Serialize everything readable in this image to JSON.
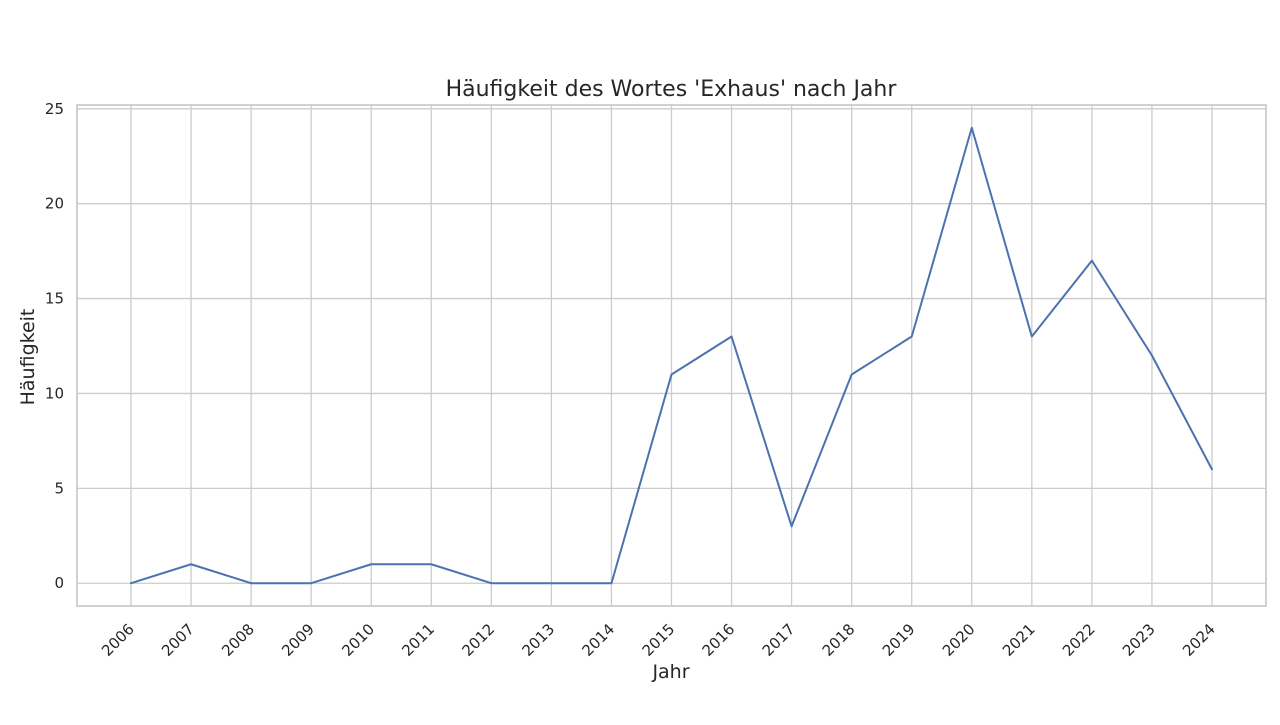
{
  "chart_data": {
    "type": "line",
    "title": "Häufigkeit des Wortes 'Exhaus' nach Jahr",
    "xlabel": "Jahr",
    "ylabel": "Häufigkeit",
    "x": [
      "2006",
      "2007",
      "2008",
      "2009",
      "2010",
      "2011",
      "2012",
      "2013",
      "2014",
      "2015",
      "2016",
      "2017",
      "2018",
      "2019",
      "2020",
      "2021",
      "2022",
      "2023",
      "2024"
    ],
    "series": [
      {
        "values": [
          0,
          1,
          0,
          0,
          1,
          1,
          0,
          0,
          0,
          11,
          13,
          3,
          11,
          13,
          24,
          13,
          17,
          12,
          6
        ],
        "color": "#4c72b0"
      }
    ],
    "ylim": [
      -1.2,
      25.2
    ],
    "yticks": [
      0,
      5,
      10,
      15,
      20,
      25
    ],
    "grid": true,
    "style": {
      "grid_color": "#cccccc",
      "text_color": "#262626"
    }
  }
}
